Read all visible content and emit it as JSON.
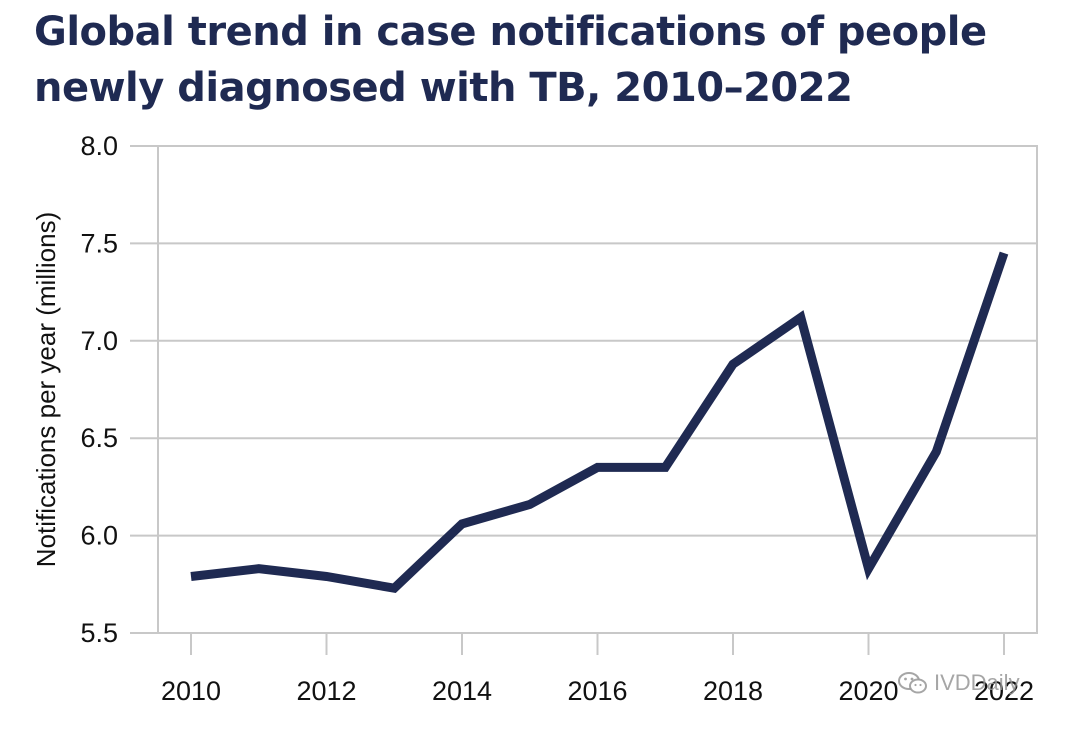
{
  "chart_data": {
    "type": "line",
    "title_line1": "Global trend in case notifications of people",
    "title_line2": "newly diagnosed with TB, 2010–2022",
    "ylabel": "Notifications per year (millions)",
    "xlabel": "",
    "x": [
      2010,
      2011,
      2012,
      2013,
      2014,
      2015,
      2016,
      2017,
      2018,
      2019,
      2020,
      2021,
      2022
    ],
    "series": [
      {
        "values": [
          5.79,
          5.83,
          5.79,
          5.73,
          6.06,
          6.16,
          6.35,
          6.35,
          6.88,
          7.12,
          5.83,
          6.43,
          7.45
        ],
        "color": "#1f2a52"
      }
    ],
    "xticks": [
      2010,
      2012,
      2014,
      2016,
      2018,
      2020,
      2022
    ],
    "xtick_labels": [
      "2010",
      "2012",
      "2014",
      "2016",
      "2018",
      "2020",
      "2022"
    ],
    "yticks": [
      5.5,
      6.0,
      6.5,
      7.0,
      7.5,
      8.0
    ],
    "ytick_labels": [
      "5.5",
      "6.0",
      "6.5",
      "7.0",
      "7.5",
      "8.0"
    ],
    "xlim": [
      2010,
      2022
    ],
    "ylim": [
      5.5,
      8.0
    ],
    "grid": "horizontal",
    "grid_color": "#c8c8c8",
    "legend": "none"
  },
  "watermark": {
    "text": "IVDDaily",
    "icon": "wechat-icon"
  }
}
